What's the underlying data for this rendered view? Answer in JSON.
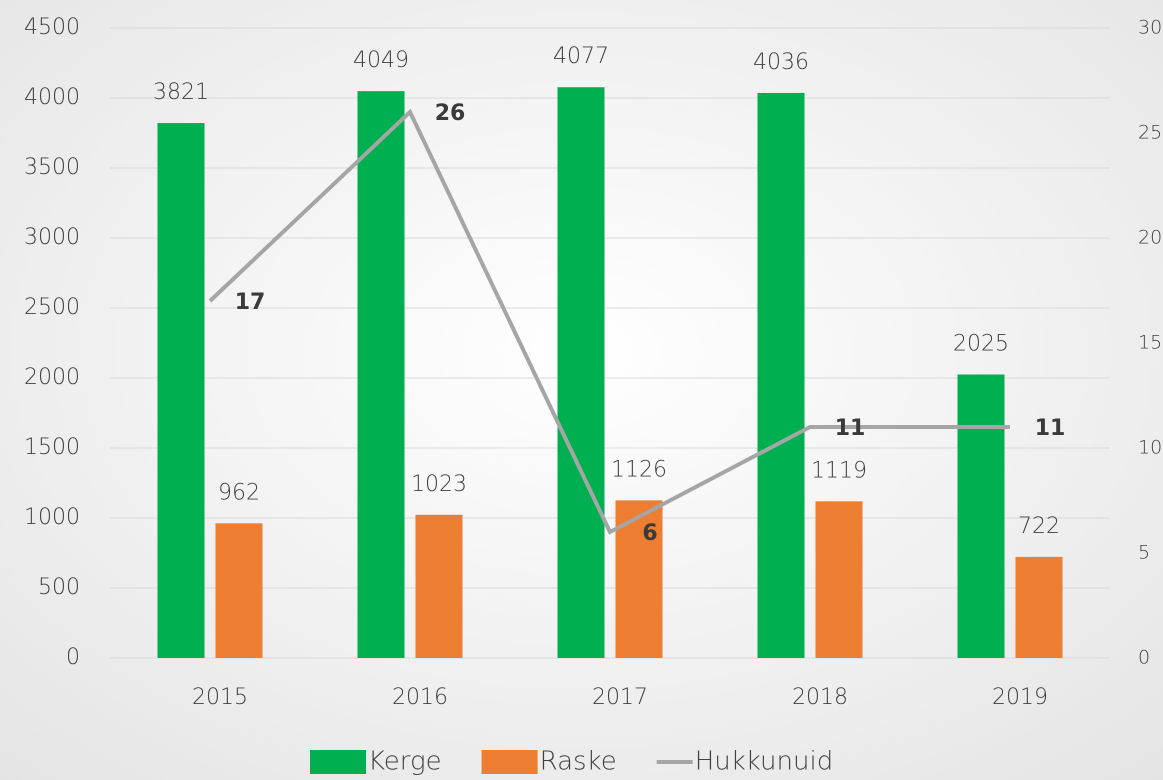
{
  "chart_data": {
    "type": "bar",
    "categories": [
      "2015",
      "2016",
      "2017",
      "2018",
      "2019"
    ],
    "series": [
      {
        "name": "Kerge",
        "color": "#00b050",
        "values": [
          3821,
          4049,
          4077,
          4036,
          2025
        ]
      },
      {
        "name": "Raske",
        "color": "#ed7d31",
        "values": [
          962,
          1023,
          1126,
          1119,
          722
        ]
      },
      {
        "name": "Hukkunuid",
        "color": "#a5a5a5",
        "type": "line",
        "axis": "y2",
        "values": [
          17,
          26,
          6,
          11,
          11
        ]
      }
    ],
    "ylim": [
      0,
      4500
    ],
    "yticks": [
      0,
      500,
      1000,
      1500,
      2000,
      2500,
      3000,
      3500,
      4000,
      4500
    ],
    "y2lim": [
      0,
      30
    ],
    "y2ticks": [
      0,
      5,
      10,
      15,
      20,
      25,
      30
    ],
    "grid": true,
    "legend": "bottom"
  }
}
